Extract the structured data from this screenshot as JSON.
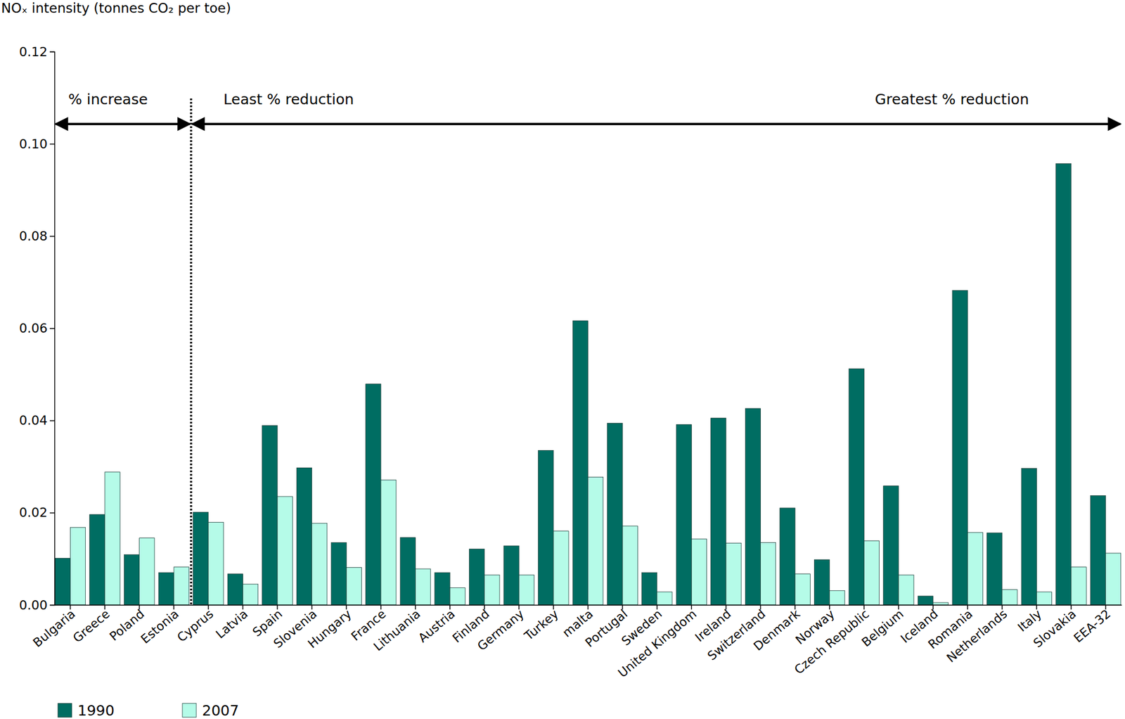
{
  "chart_data": {
    "type": "bar",
    "ylabel": "NOₓ intensity (tonnes CO₂ per toe)",
    "annotations": [
      "% increase",
      "Least % reduction",
      "Greatest % reduction"
    ],
    "categories": [
      "Bulgaria",
      "Greece",
      "Poland",
      "Estonia",
      "Cyprus",
      "Latvia",
      "Spain",
      "Slovenia",
      "Hungary",
      "France",
      "Lithuania",
      "Austria",
      "Finland",
      "Germany",
      "Turkey",
      "malta",
      "Portugal",
      "Sweden",
      "United Kingdom",
      "Ireland",
      "Switzerland",
      "Denmark",
      "Norway",
      "Czech Republic",
      "Belgium",
      "Iceland",
      "Romania",
      "Netherlands",
      "Italy",
      "Slovakia",
      "EEA-32"
    ],
    "series": [
      {
        "name": "1990",
        "color": "#006d62",
        "values": [
          0.0101,
          0.0196,
          0.0109,
          0.007,
          0.0201,
          0.0067,
          0.0389,
          0.0297,
          0.0135,
          0.0479,
          0.0146,
          0.007,
          0.0121,
          0.0128,
          0.0335,
          0.0616,
          0.0394,
          0.007,
          0.0391,
          0.0405,
          0.0426,
          0.021,
          0.0098,
          0.0512,
          0.0258,
          0.0019,
          0.0682,
          0.0156,
          0.0296,
          0.0957,
          0.0237
        ]
      },
      {
        "name": "2007",
        "color": "#b5fbe8",
        "values": [
          0.0168,
          0.0288,
          0.0145,
          0.0082,
          0.0179,
          0.0045,
          0.0235,
          0.0177,
          0.0081,
          0.0271,
          0.0078,
          0.0037,
          0.0065,
          0.0065,
          0.016,
          0.0277,
          0.0171,
          0.0028,
          0.0143,
          0.0134,
          0.0135,
          0.0067,
          0.0031,
          0.0139,
          0.0065,
          0.0005,
          0.0157,
          0.0033,
          0.0028,
          0.0082,
          0.0112
        ]
      }
    ],
    "ylim": [
      0,
      0.12
    ],
    "yticks": [
      {
        "value": 0,
        "label": "0.00"
      },
      0.02,
      0.04,
      0.06,
      0.08,
      {
        "value": 0.1,
        "label": "0.10"
      },
      0.12
    ],
    "legend": "bottom-left",
    "grid": false
  }
}
